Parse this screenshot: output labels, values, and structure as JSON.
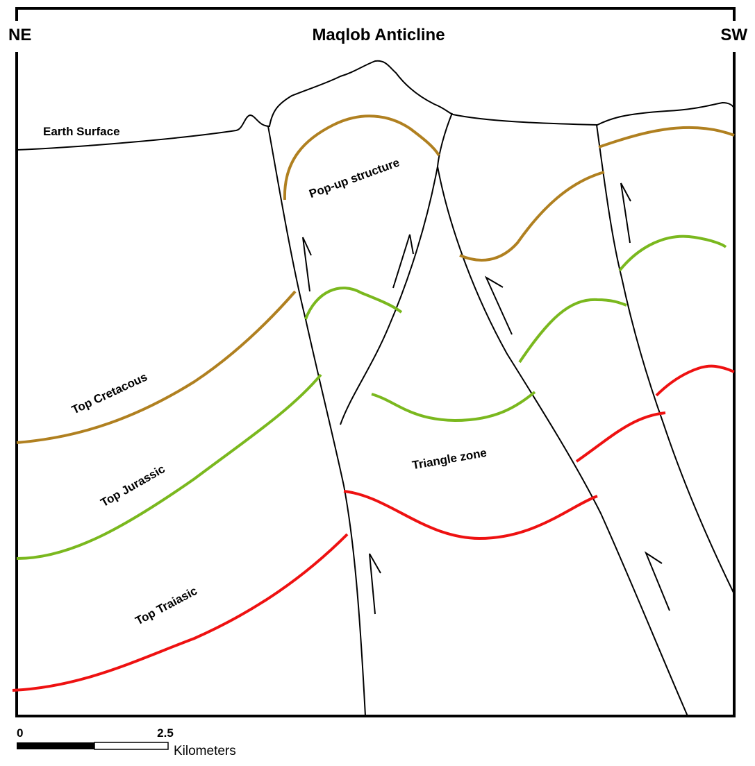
{
  "header": {
    "left": "NE",
    "title": "Maqlob Anticline",
    "right": "SW"
  },
  "labels": {
    "surface": "Earth Surface",
    "popup": "Pop-up structure",
    "cretaceous": "Top Cretacous",
    "jurassic": "Top Jurassic",
    "triassic": "Top Traiasic",
    "triangle": "Triangle zone"
  },
  "scale": {
    "start": "0",
    "end": "2.5",
    "unit": "Kilometers"
  }
}
